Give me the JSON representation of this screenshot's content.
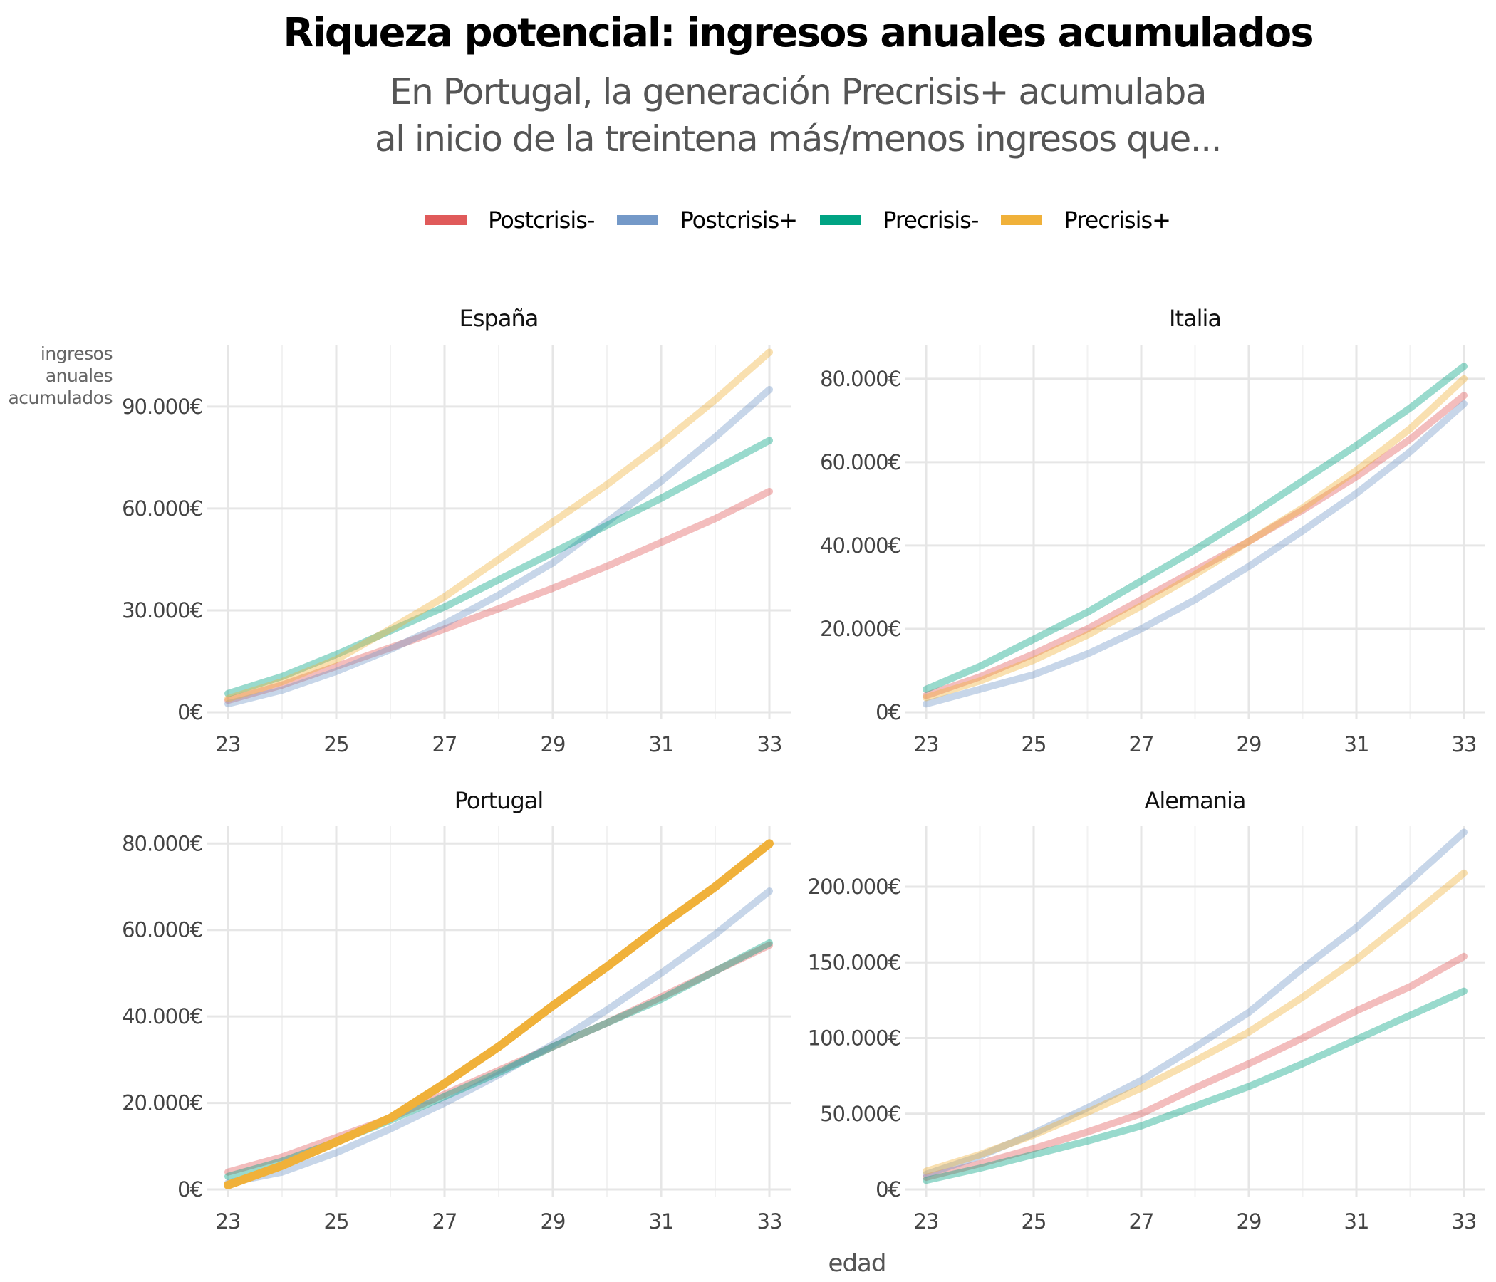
{
  "title": "Riqueza potencial: ingresos anuales acumulados",
  "subtitle_lines": [
    "En Portugal, la generación Precrisis+ acumulaba",
    "al inicio de la treintena más/menos ingresos que..."
  ],
  "legend": [
    {
      "name": "Postcrisis-",
      "color": "#e05a5a"
    },
    {
      "name": "Postcrisis+",
      "color": "#7499c8"
    },
    {
      "name": "Precrisis-",
      "color": "#00a383"
    },
    {
      "name": "Precrisis+",
      "color": "#f0b13a"
    }
  ],
  "ylabel_lines": [
    "ingresos",
    "anuales",
    "acumulados"
  ],
  "xlabel": "edad",
  "chart_data": [
    {
      "type": "line",
      "title": "España",
      "x": [
        23,
        24,
        25,
        26,
        27,
        28,
        29,
        30,
        31,
        32,
        33
      ],
      "xticks": [
        23,
        25,
        27,
        29,
        31,
        33
      ],
      "ylim": [
        0,
        108000
      ],
      "yticks": [
        0,
        30000,
        60000,
        90000
      ],
      "ytick_labels": [
        "0€",
        "30.000€",
        "60.000€",
        "90.000€"
      ],
      "highlight": null,
      "series": [
        {
          "name": "Postcrisis-",
          "values": [
            3500,
            8000,
            13500,
            19000,
            24500,
            30500,
            36500,
            43000,
            50000,
            57000,
            65000
          ]
        },
        {
          "name": "Postcrisis+",
          "values": [
            2500,
            6500,
            12000,
            18500,
            26000,
            34500,
            44000,
            56000,
            68000,
            81000,
            95000
          ]
        },
        {
          "name": "Precrisis-",
          "values": [
            5500,
            10500,
            17000,
            24000,
            31000,
            39000,
            47000,
            55000,
            63000,
            71500,
            80000
          ]
        },
        {
          "name": "Precrisis+",
          "values": [
            4000,
            9000,
            15500,
            24500,
            34000,
            45000,
            56000,
            67000,
            79000,
            92000,
            106000
          ]
        }
      ]
    },
    {
      "type": "line",
      "title": "Italia",
      "x": [
        23,
        24,
        25,
        26,
        27,
        28,
        29,
        30,
        31,
        32,
        33
      ],
      "xticks": [
        23,
        25,
        27,
        29,
        31,
        33
      ],
      "ylim": [
        0,
        88000
      ],
      "yticks": [
        0,
        20000,
        40000,
        60000,
        80000
      ],
      "ytick_labels": [
        "0€",
        "20.000€",
        "40.000€",
        "60.000€",
        "80.000€"
      ],
      "highlight": null,
      "series": [
        {
          "name": "Postcrisis-",
          "values": [
            4000,
            8500,
            14000,
            20000,
            27000,
            34000,
            41000,
            48500,
            56500,
            65500,
            76000
          ]
        },
        {
          "name": "Postcrisis+",
          "values": [
            2000,
            5500,
            9000,
            14000,
            20000,
            27000,
            35000,
            43500,
            52500,
            62500,
            74000
          ]
        },
        {
          "name": "Precrisis-",
          "values": [
            5500,
            11000,
            17500,
            24000,
            31500,
            39000,
            47000,
            55500,
            64000,
            73000,
            83000
          ]
        },
        {
          "name": "Precrisis+",
          "values": [
            3500,
            7500,
            12500,
            18500,
            25500,
            33000,
            41000,
            49000,
            58000,
            68000,
            80000
          ]
        }
      ]
    },
    {
      "type": "line",
      "title": "Portugal",
      "x": [
        23,
        24,
        25,
        26,
        27,
        28,
        29,
        30,
        31,
        32,
        33
      ],
      "xticks": [
        23,
        25,
        27,
        29,
        31,
        33
      ],
      "ylim": [
        0,
        84000
      ],
      "yticks": [
        0,
        20000,
        40000,
        60000,
        80000
      ],
      "ytick_labels": [
        "0€",
        "20.000€",
        "40.000€",
        "60.000€",
        "80.000€"
      ],
      "highlight": "Precrisis+",
      "series": [
        {
          "name": "Postcrisis-",
          "values": [
            4000,
            7500,
            12000,
            16500,
            22000,
            27500,
            33000,
            38500,
            44500,
            50500,
            56500
          ]
        },
        {
          "name": "Postcrisis+",
          "values": [
            1500,
            4000,
            8500,
            14000,
            20000,
            26500,
            33500,
            41500,
            50000,
            59000,
            69000
          ]
        },
        {
          "name": "Precrisis-",
          "values": [
            3000,
            6500,
            11000,
            16000,
            21500,
            27000,
            33000,
            38500,
            44000,
            50500,
            57000
          ]
        },
        {
          "name": "Precrisis+",
          "values": [
            1000,
            5500,
            11000,
            16500,
            24500,
            33000,
            42500,
            51500,
            61000,
            70000,
            80000
          ]
        }
      ]
    },
    {
      "type": "line",
      "title": "Alemania",
      "x": [
        23,
        24,
        25,
        26,
        27,
        28,
        29,
        30,
        31,
        32,
        33
      ],
      "xticks": [
        23,
        25,
        27,
        29,
        31,
        33
      ],
      "ylim": [
        0,
        240000
      ],
      "yticks": [
        0,
        50000,
        100000,
        150000,
        200000
      ],
      "ytick_labels": [
        "0€",
        "50.000€",
        "100.000€",
        "150.000€",
        "200.000€"
      ],
      "highlight": null,
      "series": [
        {
          "name": "Postcrisis-",
          "values": [
            8000,
            17000,
            27000,
            38000,
            50000,
            67000,
            83000,
            100000,
            118000,
            134000,
            154000
          ]
        },
        {
          "name": "Postcrisis+",
          "values": [
            10000,
            22000,
            37000,
            54000,
            72000,
            94000,
            117000,
            146000,
            173000,
            204000,
            236000
          ]
        },
        {
          "name": "Precrisis-",
          "values": [
            6000,
            14000,
            23000,
            32000,
            42000,
            55000,
            68000,
            83000,
            99000,
            115000,
            131000
          ]
        },
        {
          "name": "Precrisis+",
          "values": [
            12000,
            23000,
            36000,
            51000,
            67000,
            85000,
            104000,
            127000,
            152000,
            180000,
            209000
          ]
        }
      ]
    }
  ]
}
